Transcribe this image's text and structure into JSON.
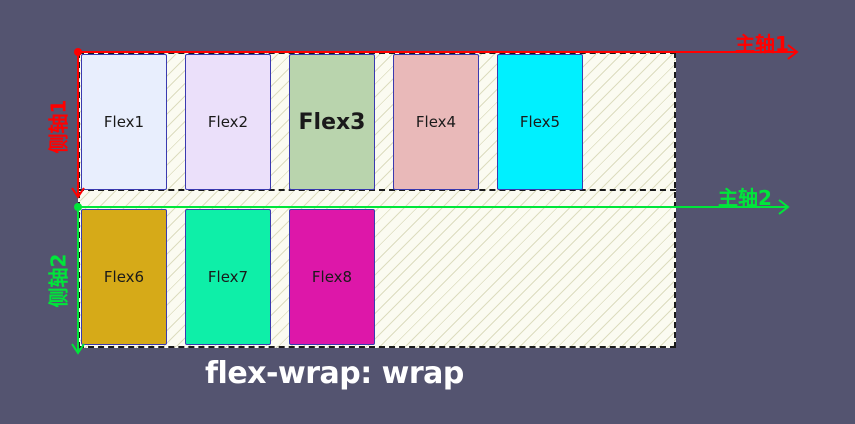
{
  "container": {
    "background": "#fbfbf1",
    "border_color": "#1a1a1a"
  },
  "items": [
    {
      "label": "Flex1",
      "color": "#e8eefd"
    },
    {
      "label": "Flex2",
      "color": "#ebe0fa"
    },
    {
      "label": "Flex3",
      "color": "#b9d4ad"
    },
    {
      "label": "Flex4",
      "color": "#e9b9b9"
    },
    {
      "label": "Flex5",
      "color": "#00f0ff"
    },
    {
      "label": "Flex6",
      "color": "#d6aa18"
    },
    {
      "label": "Flex7",
      "color": "#0eefa8"
    },
    {
      "label": "Flex8",
      "color": "#dd17a9"
    }
  ],
  "axes": {
    "main1": {
      "label": "主轴1",
      "color": "#ff0000"
    },
    "cross1": {
      "label": "侧轴1",
      "color": "#ff0000"
    },
    "main2": {
      "label": "主轴2",
      "color": "#00e63a"
    },
    "cross2": {
      "label": "侧轴2",
      "color": "#00e63a"
    }
  },
  "caption": "flex-wrap: wrap",
  "background": "#545470"
}
